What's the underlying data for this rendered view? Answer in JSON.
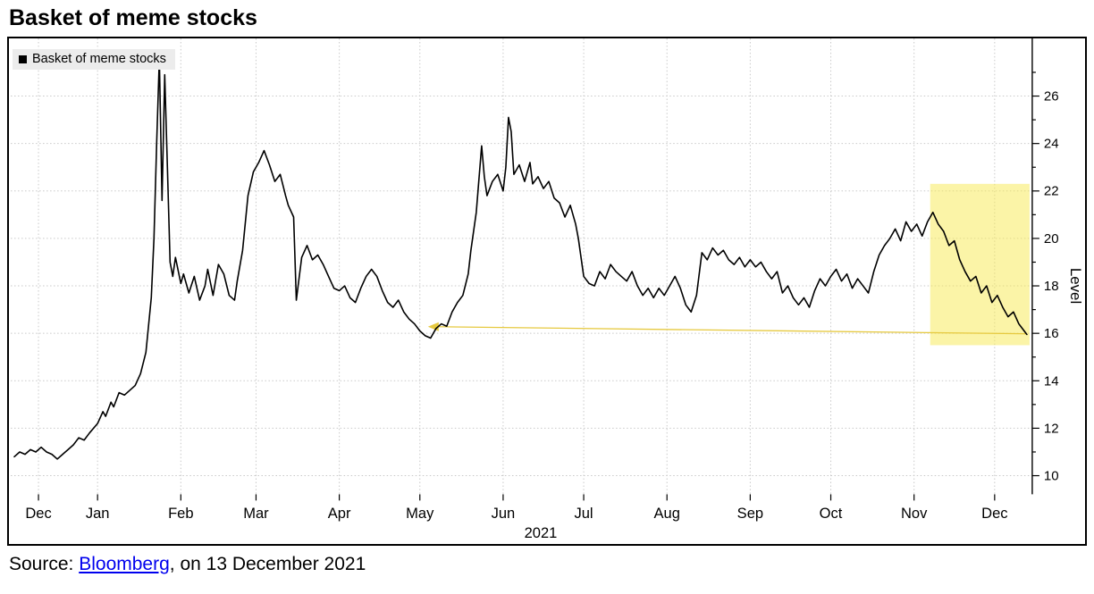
{
  "title": "Basket of meme stocks",
  "source": {
    "prefix": "Source: ",
    "link_text": "Bloomberg",
    "suffix": ", on 13 December 2021"
  },
  "colors": {
    "line": "#000000",
    "grid": "#c9c9c9",
    "axis": "#000000",
    "highlight_fill": "#f7e94f",
    "highlight_opacity": 0.5,
    "arrow": "#e6c93f",
    "legend_bg": "#ececec",
    "link": "#0000ee"
  },
  "chart_data": {
    "type": "line",
    "title": "Basket of meme stocks",
    "legend": {
      "label": "Basket of meme stocks",
      "position": "top-left"
    },
    "ylabel": "Level",
    "y_ticks": [
      10,
      12,
      14,
      16,
      18,
      20,
      22,
      24,
      26
    ],
    "ylim": [
      9.2,
      28.4
    ],
    "x_unit": "days from 2020-12-01",
    "xlim": [
      0,
      386
    ],
    "x_ticks": [
      {
        "label": "Dec",
        "day": 9
      },
      {
        "label": "Jan",
        "day": 31
      },
      {
        "label": "Feb",
        "day": 62
      },
      {
        "label": "Mar",
        "day": 90
      },
      {
        "label": "Apr",
        "day": 121
      },
      {
        "label": "May",
        "day": 151
      },
      {
        "label": "Jun",
        "day": 182
      },
      {
        "label": "Jul",
        "day": 212
      },
      {
        "label": "Aug",
        "day": 243
      },
      {
        "label": "Sep",
        "day": 274
      },
      {
        "label": "Oct",
        "day": 304
      },
      {
        "label": "Nov",
        "day": 335
      },
      {
        "label": "Dec",
        "day": 365
      }
    ],
    "year_label": {
      "label": "2021",
      "day": 196
    },
    "grid": true,
    "highlight": {
      "day_start": 341,
      "day_end": 378,
      "value_low": 15.5,
      "value_high": 22.3
    },
    "annotation_arrow": {
      "from_day": 377,
      "from_value": 15.98,
      "to_day": 157,
      "to_value": 16.28
    },
    "series": [
      {
        "name": "Basket of meme stocks",
        "color": "#000000",
        "points": [
          [
            0,
            10.8
          ],
          [
            2,
            11.0
          ],
          [
            4,
            10.9
          ],
          [
            6,
            11.1
          ],
          [
            8,
            11.0
          ],
          [
            10,
            11.2
          ],
          [
            12,
            11.0
          ],
          [
            14,
            10.9
          ],
          [
            16,
            10.7
          ],
          [
            18,
            10.9
          ],
          [
            20,
            11.1
          ],
          [
            22,
            11.3
          ],
          [
            24,
            11.6
          ],
          [
            26,
            11.5
          ],
          [
            28,
            11.8
          ],
          [
            31,
            12.2
          ],
          [
            33,
            12.7
          ],
          [
            34,
            12.5
          ],
          [
            36,
            13.1
          ],
          [
            37,
            12.9
          ],
          [
            39,
            13.5
          ],
          [
            41,
            13.4
          ],
          [
            43,
            13.6
          ],
          [
            45,
            13.8
          ],
          [
            47,
            14.3
          ],
          [
            49,
            15.2
          ],
          [
            51,
            17.5
          ],
          [
            52,
            20.0
          ],
          [
            53,
            24.0
          ],
          [
            54,
            27.6
          ],
          [
            55,
            21.6
          ],
          [
            56,
            26.9
          ],
          [
            57,
            23.0
          ],
          [
            58,
            19.0
          ],
          [
            59,
            18.4
          ],
          [
            60,
            19.2
          ],
          [
            62,
            18.1
          ],
          [
            63,
            18.5
          ],
          [
            65,
            17.7
          ],
          [
            67,
            18.4
          ],
          [
            69,
            17.4
          ],
          [
            71,
            18.0
          ],
          [
            72,
            18.7
          ],
          [
            74,
            17.6
          ],
          [
            76,
            18.9
          ],
          [
            78,
            18.5
          ],
          [
            80,
            17.6
          ],
          [
            82,
            17.4
          ],
          [
            83,
            18.2
          ],
          [
            85,
            19.5
          ],
          [
            87,
            21.8
          ],
          [
            89,
            22.8
          ],
          [
            91,
            23.2
          ],
          [
            93,
            23.7
          ],
          [
            95,
            23.1
          ],
          [
            97,
            22.4
          ],
          [
            99,
            22.7
          ],
          [
            101,
            21.8
          ],
          [
            102,
            21.4
          ],
          [
            104,
            20.9
          ],
          [
            105,
            17.4
          ],
          [
            107,
            19.2
          ],
          [
            109,
            19.7
          ],
          [
            111,
            19.1
          ],
          [
            113,
            19.3
          ],
          [
            115,
            18.9
          ],
          [
            117,
            18.4
          ],
          [
            119,
            17.9
          ],
          [
            121,
            17.8
          ],
          [
            123,
            18.0
          ],
          [
            125,
            17.5
          ],
          [
            127,
            17.3
          ],
          [
            129,
            17.9
          ],
          [
            131,
            18.4
          ],
          [
            133,
            18.7
          ],
          [
            135,
            18.4
          ],
          [
            137,
            17.8
          ],
          [
            139,
            17.3
          ],
          [
            141,
            17.1
          ],
          [
            143,
            17.4
          ],
          [
            145,
            16.9
          ],
          [
            147,
            16.6
          ],
          [
            149,
            16.4
          ],
          [
            151,
            16.1
          ],
          [
            153,
            15.9
          ],
          [
            155,
            15.8
          ],
          [
            157,
            16.2
          ],
          [
            159,
            16.4
          ],
          [
            161,
            16.3
          ],
          [
            163,
            16.9
          ],
          [
            165,
            17.3
          ],
          [
            167,
            17.6
          ],
          [
            169,
            18.5
          ],
          [
            170,
            19.5
          ],
          [
            171,
            20.3
          ],
          [
            172,
            21.1
          ],
          [
            174,
            23.9
          ],
          [
            175,
            22.6
          ],
          [
            176,
            21.8
          ],
          [
            178,
            22.4
          ],
          [
            180,
            22.7
          ],
          [
            182,
            22.0
          ],
          [
            183,
            23.0
          ],
          [
            184,
            25.1
          ],
          [
            185,
            24.5
          ],
          [
            186,
            22.7
          ],
          [
            188,
            23.1
          ],
          [
            190,
            22.4
          ],
          [
            192,
            23.2
          ],
          [
            193,
            22.3
          ],
          [
            195,
            22.6
          ],
          [
            197,
            22.1
          ],
          [
            199,
            22.4
          ],
          [
            201,
            21.7
          ],
          [
            203,
            21.5
          ],
          [
            205,
            20.9
          ],
          [
            207,
            21.4
          ],
          [
            209,
            20.6
          ],
          [
            210,
            20.0
          ],
          [
            212,
            18.4
          ],
          [
            214,
            18.1
          ],
          [
            216,
            18.0
          ],
          [
            218,
            18.6
          ],
          [
            220,
            18.3
          ],
          [
            222,
            18.9
          ],
          [
            224,
            18.6
          ],
          [
            226,
            18.4
          ],
          [
            228,
            18.2
          ],
          [
            230,
            18.6
          ],
          [
            232,
            18.0
          ],
          [
            234,
            17.6
          ],
          [
            236,
            17.9
          ],
          [
            238,
            17.5
          ],
          [
            240,
            17.9
          ],
          [
            242,
            17.6
          ],
          [
            244,
            18.0
          ],
          [
            246,
            18.4
          ],
          [
            248,
            17.9
          ],
          [
            250,
            17.2
          ],
          [
            252,
            16.9
          ],
          [
            254,
            17.6
          ],
          [
            256,
            19.4
          ],
          [
            258,
            19.1
          ],
          [
            260,
            19.6
          ],
          [
            262,
            19.3
          ],
          [
            264,
            19.5
          ],
          [
            266,
            19.1
          ],
          [
            268,
            18.9
          ],
          [
            270,
            19.2
          ],
          [
            272,
            18.8
          ],
          [
            274,
            19.1
          ],
          [
            276,
            18.8
          ],
          [
            278,
            19.0
          ],
          [
            280,
            18.6
          ],
          [
            282,
            18.3
          ],
          [
            284,
            18.6
          ],
          [
            286,
            17.7
          ],
          [
            288,
            18.0
          ],
          [
            290,
            17.5
          ],
          [
            292,
            17.2
          ],
          [
            294,
            17.5
          ],
          [
            296,
            17.1
          ],
          [
            298,
            17.8
          ],
          [
            300,
            18.3
          ],
          [
            302,
            18.0
          ],
          [
            304,
            18.4
          ],
          [
            306,
            18.7
          ],
          [
            308,
            18.2
          ],
          [
            310,
            18.5
          ],
          [
            312,
            17.9
          ],
          [
            314,
            18.3
          ],
          [
            316,
            18.0
          ],
          [
            318,
            17.7
          ],
          [
            320,
            18.6
          ],
          [
            322,
            19.3
          ],
          [
            324,
            19.7
          ],
          [
            326,
            20.0
          ],
          [
            328,
            20.4
          ],
          [
            330,
            19.9
          ],
          [
            332,
            20.7
          ],
          [
            334,
            20.3
          ],
          [
            336,
            20.6
          ],
          [
            338,
            20.1
          ],
          [
            340,
            20.7
          ],
          [
            342,
            21.1
          ],
          [
            344,
            20.6
          ],
          [
            346,
            20.3
          ],
          [
            348,
            19.7
          ],
          [
            350,
            19.9
          ],
          [
            352,
            19.1
          ],
          [
            354,
            18.6
          ],
          [
            356,
            18.2
          ],
          [
            358,
            18.4
          ],
          [
            360,
            17.7
          ],
          [
            362,
            18.0
          ],
          [
            364,
            17.3
          ],
          [
            366,
            17.6
          ],
          [
            368,
            17.1
          ],
          [
            370,
            16.7
          ],
          [
            372,
            16.9
          ],
          [
            374,
            16.4
          ],
          [
            376,
            16.1
          ],
          [
            377,
            15.95
          ]
        ]
      }
    ]
  }
}
